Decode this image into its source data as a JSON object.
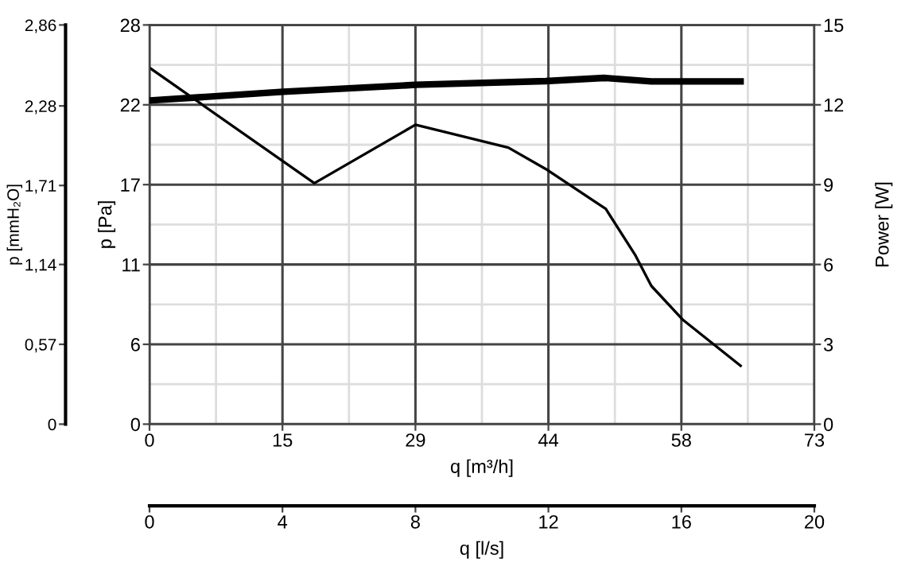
{
  "chart_data": {
    "type": "line",
    "xlabel": "q [m³/h]",
    "ylabel": "p [Pa]",
    "y2label": "Power [W]",
    "y3label": "p [mmH₂O]",
    "x2label": "q [l/s]",
    "xlim": [
      0,
      73
    ],
    "xticks": [
      0,
      {
        "value": 14.6,
        "label": "15"
      },
      {
        "value": 29.2,
        "label": "29"
      },
      {
        "value": 43.8,
        "label": "44"
      },
      {
        "value": 58.4,
        "label": "58"
      },
      73
    ],
    "ylim": [
      0,
      28
    ],
    "yticks": [
      0,
      {
        "value": 5.6,
        "label": "6"
      },
      {
        "value": 11.2,
        "label": "11"
      },
      {
        "value": 16.8,
        "label": "17"
      },
      {
        "value": 22.4,
        "label": "22"
      },
      28
    ],
    "y2lim": [
      0,
      15
    ],
    "y2ticks": [
      0,
      3,
      6,
      9,
      12,
      15
    ],
    "y3lim": [
      0,
      2.86
    ],
    "y3ticks": [
      0,
      {
        "value": 0.572,
        "label": "0,57"
      },
      {
        "value": 1.144,
        "label": "1,14"
      },
      {
        "value": 1.71,
        "label": "1,71"
      },
      {
        "value": 2.28,
        "label": "2,28"
      },
      {
        "value": 2.86,
        "label": "2,86"
      }
    ],
    "x2lim": [
      0,
      20
    ],
    "x2ticks": [
      0,
      4,
      8,
      12,
      16,
      20
    ],
    "grid": true,
    "marker": "none",
    "line_style": "solid",
    "series": [
      {
        "color": "#000000",
        "x": [
          0,
          18.1,
          29.2,
          32.4,
          39.4,
          43.5,
          50.1,
          53.3,
          55.1,
          58.6,
          64.9
        ],
        "values": [
          25,
          16.9,
          21.0,
          20.5,
          19.4,
          17.9,
          15.1,
          11.9,
          9.7,
          7.3,
          4.1
        ]
      },
      {
        "color": "#000000",
        "axis": "y2",
        "x": [
          0,
          14.7,
          29.2,
          43.5,
          49.9,
          55.1,
          64.9
        ],
        "values": [
          12.16,
          12.49,
          12.75,
          12.89,
          13.01,
          12.88,
          12.88
        ]
      }
    ]
  }
}
